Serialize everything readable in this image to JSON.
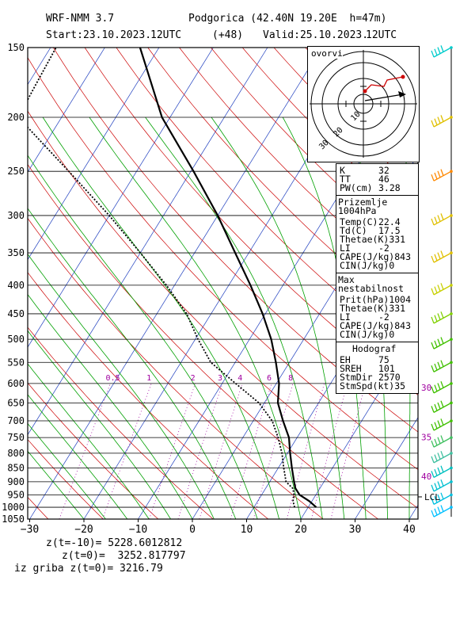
{
  "header": {
    "model": "WRF-NMM 3.7",
    "location": "Podgorica (42.40N 19.20E  h=47m)",
    "start": "Start:23.10.2023.",
    "start_time": "12UTC",
    "lead": "(+48)",
    "valid": "Valid:25.10.2023.",
    "valid_time": "12UTC"
  },
  "footer": {
    "line1": "z(t=-10)= 5228.6012812",
    "line2": "z(t=0)=  3252.817797",
    "line3": "iz griba z(t=0)= 3216.79"
  },
  "hodograph": {
    "title": "ovorvi",
    "ring_labels": [
      "10",
      "20",
      "30"
    ]
  },
  "info": {
    "index": {
      "rows": [
        [
          "K",
          "32"
        ],
        [
          "TT",
          "46"
        ],
        [
          "PW(cm)",
          "3.28"
        ]
      ]
    },
    "surface": {
      "title": "Prizemlje 1004hPa",
      "rows": [
        [
          "Temp(C)",
          "22.4"
        ],
        [
          "Td(C)",
          "17.5"
        ],
        [
          "Thetae(K)",
          "331"
        ],
        [
          "LI",
          "-2"
        ],
        [
          "CAPE(J/kg)",
          "843"
        ],
        [
          "CIN(J/kg)",
          "0"
        ]
      ]
    },
    "unstable": {
      "title": "Max nestabilnost",
      "rows": [
        [
          "Prit(hPa)",
          "1004"
        ],
        [
          "Thetae(K)",
          "331"
        ],
        [
          "LI",
          "-2"
        ],
        [
          "CAPE(J/kg)",
          "843"
        ],
        [
          "CIN(J/kg)",
          "0"
        ]
      ]
    },
    "hodo": {
      "title": "Hodograf",
      "rows": [
        [
          "EH",
          "75"
        ],
        [
          "SREH",
          "101"
        ],
        [
          "StmDir",
          "2570"
        ],
        [
          "StmSpd(kt)",
          "35"
        ]
      ]
    }
  },
  "lcl_label": "LCL",
  "mixing_ratio_labels": [
    "0.5",
    "1",
    "2",
    "3",
    "4",
    "6",
    "8"
  ],
  "right_temp_labels": [
    "30",
    "35",
    "40"
  ],
  "colors": {
    "isotherm": "#1f3fbf",
    "dry_adiabat": "#cc0000",
    "moist_adiabat": "#00a000",
    "mixing_ratio": "#a000a0",
    "temperature": "#000000",
    "dewpoint": "#000000"
  },
  "chart_data": {
    "type": "line",
    "title": "",
    "xlabel": "",
    "ylabel": "",
    "x_ticks": [
      -30,
      -20,
      -10,
      0,
      10,
      20,
      30,
      40
    ],
    "y_ticks": [
      150,
      200,
      250,
      300,
      350,
      400,
      450,
      500,
      550,
      600,
      650,
      700,
      750,
      800,
      850,
      900,
      950,
      1000,
      1050
    ],
    "xlim": [
      -30,
      42
    ],
    "ylim": [
      1050,
      150
    ],
    "series": [
      {
        "points": [
          [
            1000,
            21.5
          ],
          [
            975,
            19.5
          ],
          [
            950,
            17.0
          ],
          [
            925,
            15.5
          ],
          [
            900,
            14.5
          ],
          [
            850,
            12.5
          ],
          [
            800,
            10.5
          ],
          [
            750,
            8.5
          ],
          [
            700,
            5.5
          ],
          [
            650,
            2.5
          ],
          [
            600,
            0.5
          ],
          [
            550,
            -2.5
          ],
          [
            500,
            -6.0
          ],
          [
            450,
            -10.5
          ],
          [
            400,
            -16.0
          ],
          [
            350,
            -22.5
          ],
          [
            300,
            -30.0
          ],
          [
            250,
            -39.5
          ],
          [
            200,
            -51.5
          ],
          [
            150,
            -63.5
          ]
        ]
      },
      {
        "points": [
          [
            1000,
            17.5
          ],
          [
            975,
            16.5
          ],
          [
            950,
            16.0
          ],
          [
            925,
            15.0
          ],
          [
            900,
            13.0
          ],
          [
            850,
            11.0
          ],
          [
            800,
            9.0
          ],
          [
            750,
            6.5
          ],
          [
            700,
            3.5
          ],
          [
            650,
            -1.0
          ],
          [
            600,
            -7.5
          ],
          [
            550,
            -14.5
          ],
          [
            500,
            -19.5
          ],
          [
            450,
            -24.5
          ],
          [
            400,
            -31.5
          ],
          [
            350,
            -40.0
          ],
          [
            300,
            -50.0
          ],
          [
            250,
            -62.5
          ],
          [
            200,
            -78.0
          ],
          [
            175,
            -78.5
          ],
          [
            150,
            -79.0
          ]
        ]
      }
    ],
    "wind_barbs": [
      {
        "p": 150,
        "color": "#00cccc"
      },
      {
        "p": 200,
        "color": "#e0c000"
      },
      {
        "p": 250,
        "color": "#ff8800"
      },
      {
        "p": 300,
        "color": "#e0c000"
      },
      {
        "p": 350,
        "color": "#e0c000"
      },
      {
        "p": 400,
        "color": "#c8d000"
      },
      {
        "p": 450,
        "color": "#80d000"
      },
      {
        "p": 500,
        "color": "#40c000"
      },
      {
        "p": 550,
        "color": "#40c000"
      },
      {
        "p": 600,
        "color": "#40c000"
      },
      {
        "p": 650,
        "color": "#40c000"
      },
      {
        "p": 700,
        "color": "#40c000"
      },
      {
        "p": 750,
        "color": "#40c060"
      },
      {
        "p": 800,
        "color": "#40c0a0"
      },
      {
        "p": 850,
        "color": "#00c0c0"
      },
      {
        "p": 900,
        "color": "#00c0d0"
      },
      {
        "p": 950,
        "color": "#00c0e0"
      },
      {
        "p": 1000,
        "color": "#00c0ff"
      }
    ]
  }
}
